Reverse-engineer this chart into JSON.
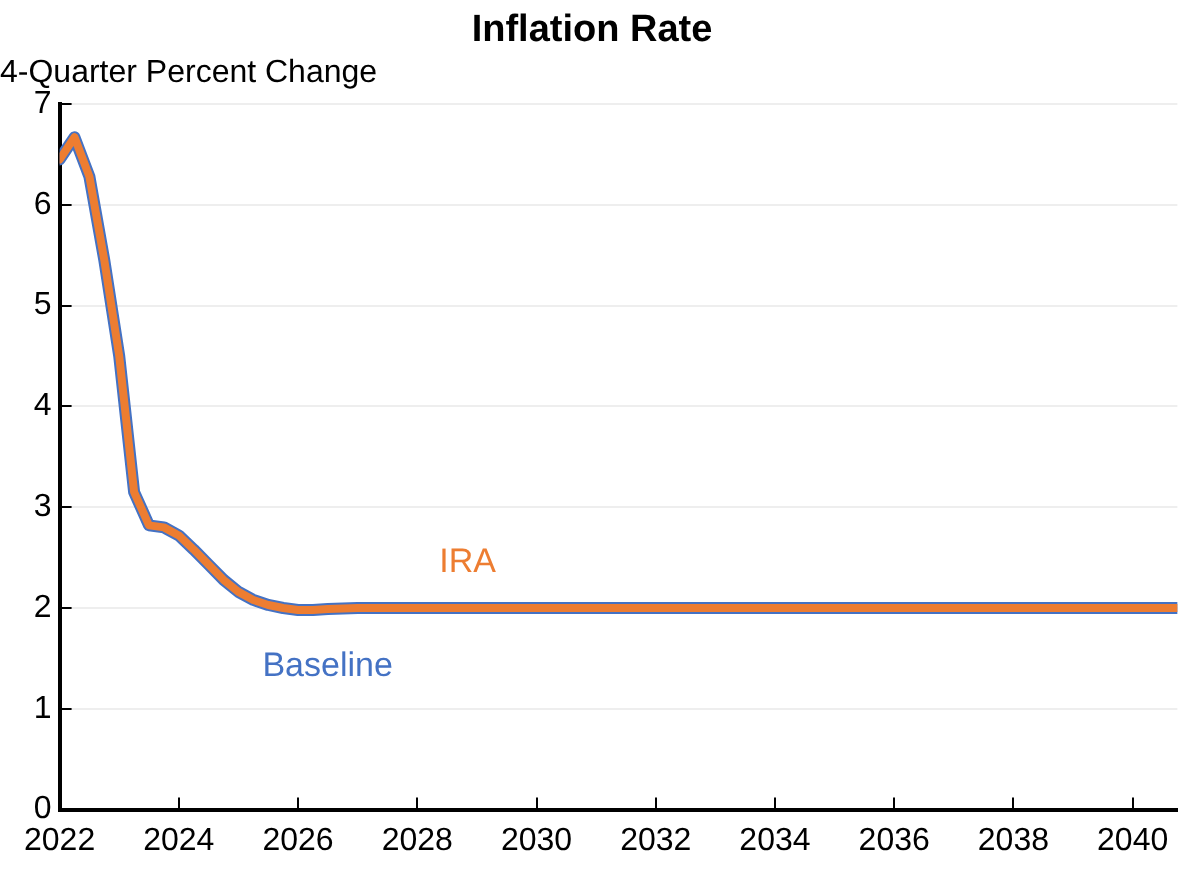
{
  "chart_data": {
    "type": "line",
    "title": "Inflation Rate",
    "ylabel": "4-Quarter Percent Change",
    "x": [
      2022,
      2022.25,
      2022.5,
      2022.75,
      2023,
      2023.25,
      2023.5,
      2023.75,
      2024,
      2024.25,
      2024.5,
      2024.75,
      2025,
      2025.25,
      2025.5,
      2025.75,
      2026,
      2026.25,
      2026.5,
      2027,
      2028,
      2030,
      2032,
      2034,
      2036,
      2038,
      2040,
      2040.75
    ],
    "series": [
      {
        "name": "Baseline",
        "color": "#4472c4",
        "values": [
          6.45,
          6.67,
          6.28,
          5.45,
          4.5,
          3.15,
          2.82,
          2.8,
          2.72,
          2.58,
          2.43,
          2.28,
          2.16,
          2.08,
          2.03,
          2.0,
          1.98,
          1.98,
          1.99,
          2.0,
          2.0,
          2.0,
          2.0,
          2.0,
          2.0,
          2.0,
          2.0,
          2.0
        ]
      },
      {
        "name": "IRA",
        "color": "#ed7d31",
        "values": [
          6.45,
          6.67,
          6.28,
          5.45,
          4.5,
          3.15,
          2.82,
          2.8,
          2.72,
          2.58,
          2.43,
          2.28,
          2.16,
          2.08,
          2.03,
          2.0,
          1.98,
          1.98,
          1.99,
          2.0,
          2.0,
          2.0,
          2.0,
          2.0,
          2.0,
          2.0,
          2.0,
          2.0
        ]
      }
    ],
    "xlim": [
      2022,
      2040.75
    ],
    "xticks": [
      2022,
      2024,
      2026,
      2028,
      2030,
      2032,
      2034,
      2036,
      2038,
      2040
    ],
    "ylim": [
      0,
      7
    ],
    "yticks": [
      0,
      1,
      2,
      3,
      4,
      5,
      6,
      7
    ],
    "grid": "y",
    "legend": false,
    "marker": "none",
    "line_style": "solid"
  }
}
